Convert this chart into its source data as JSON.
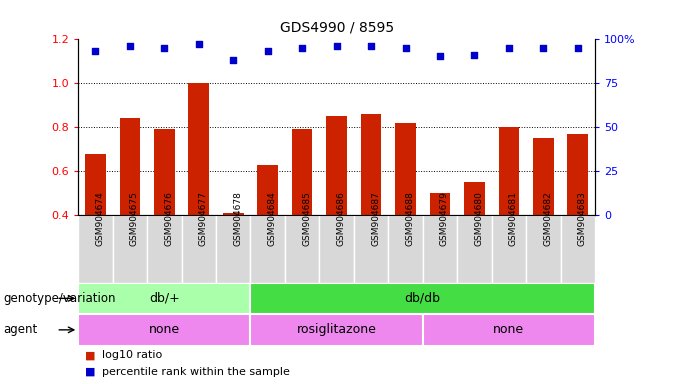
{
  "title": "GDS4990 / 8595",
  "samples": [
    "GSM904674",
    "GSM904675",
    "GSM904676",
    "GSM904677",
    "GSM904678",
    "GSM904684",
    "GSM904685",
    "GSM904686",
    "GSM904687",
    "GSM904688",
    "GSM904679",
    "GSM904680",
    "GSM904681",
    "GSM904682",
    "GSM904683"
  ],
  "log10_ratio": [
    0.68,
    0.84,
    0.79,
    1.0,
    0.41,
    0.63,
    0.79,
    0.85,
    0.86,
    0.82,
    0.5,
    0.55,
    0.8,
    0.75,
    0.77
  ],
  "percentile_rank": [
    93,
    96,
    95,
    97,
    88,
    93,
    95,
    96,
    96,
    95,
    90,
    91,
    95,
    95,
    95
  ],
  "bar_color": "#cc2200",
  "dot_color": "#0000cc",
  "ylim_left": [
    0.4,
    1.2
  ],
  "ylim_right": [
    0,
    100
  ],
  "yticks_left": [
    0.4,
    0.6,
    0.8,
    1.0,
    1.2
  ],
  "yticks_right": [
    0,
    25,
    50,
    75,
    100
  ],
  "ytick_labels_right": [
    "0",
    "25",
    "50",
    "75",
    "100%"
  ],
  "grid_values": [
    0.6,
    0.8,
    1.0
  ],
  "genotype_groups": [
    {
      "label": "db/+",
      "start": 0,
      "end": 5,
      "color": "#aaffaa"
    },
    {
      "label": "db/db",
      "start": 5,
      "end": 15,
      "color": "#44dd44"
    }
  ],
  "agent_groups": [
    {
      "label": "none",
      "start": 0,
      "end": 5,
      "color": "#ee88ee"
    },
    {
      "label": "rosiglitazone",
      "start": 5,
      "end": 10,
      "color": "#ee88ee"
    },
    {
      "label": "none",
      "start": 10,
      "end": 15,
      "color": "#ee88ee"
    }
  ],
  "legend_bar_label": "log10 ratio",
  "legend_dot_label": "percentile rank within the sample",
  "genotype_label": "genotype/variation",
  "agent_label": "agent",
  "background_color": "#ffffff",
  "tick_bg_color": "#d8d8d8",
  "bar_width": 0.6,
  "title_fontsize": 10,
  "axis_fontsize": 8,
  "label_fontsize": 8.5,
  "legend_fontsize": 8
}
